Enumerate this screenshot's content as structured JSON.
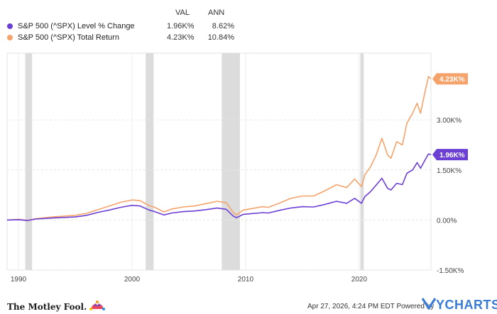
{
  "legend": {
    "headers": {
      "val": "VAL",
      "ann": "ANN"
    },
    "rows": [
      {
        "name": "S&P 500 (^SPX) Level % Change",
        "val": "1.96K%",
        "ann": "8.62%",
        "color": "#6b3fd4"
      },
      {
        "name": "S&P 500 (^SPX) Total Return",
        "val": "4.23K%",
        "ann": "10.84%",
        "color": "#f5a36a"
      }
    ]
  },
  "chart_data": {
    "type": "line",
    "x_range": [
      1989.0,
      2026.32
    ],
    "y_range": [
      -1500,
      5000
    ],
    "y_ticks": [
      {
        "value": 3000,
        "label": "3.00K%"
      },
      {
        "value": 1500,
        "label": "1.50K%"
      },
      {
        "value": 0,
        "label": "0.00%"
      },
      {
        "value": -1500,
        "label": "-1.50K%"
      }
    ],
    "x_ticks": [
      {
        "value": 1990,
        "label": "1990"
      },
      {
        "value": 2000,
        "label": "2000"
      },
      {
        "value": 2010,
        "label": "2010"
      },
      {
        "value": 2020,
        "label": "2020"
      }
    ],
    "recessions": [
      [
        1990.6,
        1991.2
      ],
      [
        2001.2,
        2001.9
      ],
      [
        2007.9,
        2009.5
      ],
      [
        2020.1,
        2020.4
      ]
    ],
    "end_labels": [
      {
        "series": "S&P 500 (^SPX) Total Return",
        "label": "4.23K%",
        "value": 4230
      },
      {
        "series": "S&P 500 (^SPX) Level % Change",
        "label": "1.96K%",
        "value": 1960
      }
    ],
    "series": [
      {
        "name": "S&P 500 (^SPX) Total Return",
        "color": "#f5a36a",
        "points": [
          [
            1989.0,
            0
          ],
          [
            1990.0,
            20
          ],
          [
            1990.8,
            -10
          ],
          [
            1991.5,
            40
          ],
          [
            1993.0,
            90
          ],
          [
            1995.0,
            140
          ],
          [
            1996.0,
            200
          ],
          [
            1997.0,
            310
          ],
          [
            1998.0,
            420
          ],
          [
            1999.0,
            530
          ],
          [
            2000.0,
            600
          ],
          [
            2000.7,
            580
          ],
          [
            2001.5,
            430
          ],
          [
            2002.0,
            380
          ],
          [
            2002.8,
            240
          ],
          [
            2003.5,
            330
          ],
          [
            2004.5,
            390
          ],
          [
            2005.5,
            420
          ],
          [
            2006.5,
            490
          ],
          [
            2007.5,
            560
          ],
          [
            2008.3,
            520
          ],
          [
            2008.9,
            230
          ],
          [
            2009.2,
            150
          ],
          [
            2009.8,
            300
          ],
          [
            2010.5,
            340
          ],
          [
            2011.5,
            400
          ],
          [
            2012.0,
            380
          ],
          [
            2013.0,
            510
          ],
          [
            2014.0,
            650
          ],
          [
            2015.0,
            720
          ],
          [
            2016.0,
            720
          ],
          [
            2017.0,
            880
          ],
          [
            2018.0,
            1060
          ],
          [
            2018.9,
            970
          ],
          [
            2019.6,
            1230
          ],
          [
            2020.2,
            1000
          ],
          [
            2020.5,
            1350
          ],
          [
            2021.0,
            1600
          ],
          [
            2021.5,
            1950
          ],
          [
            2022.0,
            2450
          ],
          [
            2022.5,
            1950
          ],
          [
            2022.8,
            1850
          ],
          [
            2023.3,
            2350
          ],
          [
            2023.8,
            2250
          ],
          [
            2024.2,
            2900
          ],
          [
            2024.7,
            3200
          ],
          [
            2025.1,
            3500
          ],
          [
            2025.4,
            3200
          ],
          [
            2025.8,
            3850
          ],
          [
            2026.1,
            4300
          ],
          [
            2026.32,
            4230
          ]
        ]
      },
      {
        "name": "S&P 500 (^SPX) Level % Change",
        "color": "#6b3fd4",
        "points": [
          [
            1989.0,
            0
          ],
          [
            1990.0,
            10
          ],
          [
            1990.8,
            -15
          ],
          [
            1991.5,
            30
          ],
          [
            1993.0,
            60
          ],
          [
            1995.0,
            90
          ],
          [
            1996.0,
            140
          ],
          [
            1997.0,
            230
          ],
          [
            1998.0,
            300
          ],
          [
            1999.0,
            380
          ],
          [
            2000.0,
            440
          ],
          [
            2000.7,
            420
          ],
          [
            2001.5,
            300
          ],
          [
            2002.0,
            250
          ],
          [
            2002.8,
            150
          ],
          [
            2003.5,
            210
          ],
          [
            2004.5,
            250
          ],
          [
            2005.5,
            270
          ],
          [
            2006.5,
            310
          ],
          [
            2007.5,
            360
          ],
          [
            2008.3,
            320
          ],
          [
            2008.9,
            120
          ],
          [
            2009.2,
            70
          ],
          [
            2009.8,
            170
          ],
          [
            2010.5,
            190
          ],
          [
            2011.5,
            220
          ],
          [
            2012.0,
            210
          ],
          [
            2013.0,
            290
          ],
          [
            2014.0,
            360
          ],
          [
            2015.0,
            400
          ],
          [
            2016.0,
            390
          ],
          [
            2017.0,
            470
          ],
          [
            2018.0,
            560
          ],
          [
            2018.9,
            500
          ],
          [
            2019.6,
            650
          ],
          [
            2020.2,
            500
          ],
          [
            2020.5,
            700
          ],
          [
            2021.0,
            850
          ],
          [
            2021.5,
            1050
          ],
          [
            2022.0,
            1250
          ],
          [
            2022.5,
            950
          ],
          [
            2022.8,
            900
          ],
          [
            2023.3,
            1100
          ],
          [
            2023.8,
            1060
          ],
          [
            2024.2,
            1400
          ],
          [
            2024.7,
            1500
          ],
          [
            2025.1,
            1720
          ],
          [
            2025.4,
            1550
          ],
          [
            2025.8,
            1800
          ],
          [
            2026.1,
            1980
          ],
          [
            2026.32,
            1960
          ]
        ]
      }
    ]
  },
  "footer": {
    "brand": "The Motley Fool.",
    "timestamp": "Apr 27, 2026, 4:24 PM EDT  Powered by",
    "powered": "YCHARTS"
  }
}
